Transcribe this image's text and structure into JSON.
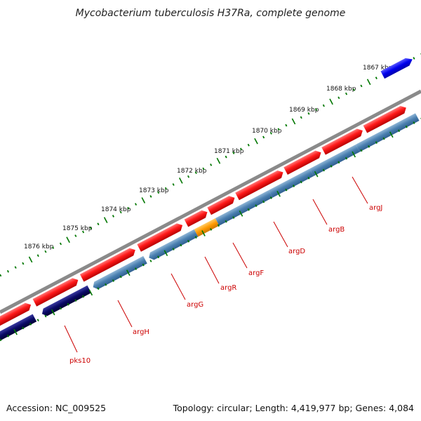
{
  "title": "Mycobacterium tuberculosis H37Ra, complete genome",
  "accession": "Accession: NC_009525",
  "summary": "Topology: circular; Length: 4,419,977 bp; Genes: 4,084",
  "colors": {
    "forward_cds": "#ee1111",
    "reverse_cds": "#4a7fb0",
    "reverse_other": "#0a0a66",
    "highlight": "#ff9900",
    "other_gene": "#0000dd",
    "backbone": "#888888",
    "tick": "#007700",
    "label": "#cc0000"
  },
  "kbp_labels": [
    "1867 kbp",
    "1868 kbp",
    "1869 kbp",
    "1870 kbp",
    "1871 kbp",
    "1872 kbp",
    "1873 kbp",
    "1874 kbp",
    "1875 kbp",
    "1876 kbp"
  ],
  "gene_labels": [
    "argJ",
    "argB",
    "argD",
    "argF",
    "argR",
    "argG",
    "argH",
    "pks10"
  ]
}
